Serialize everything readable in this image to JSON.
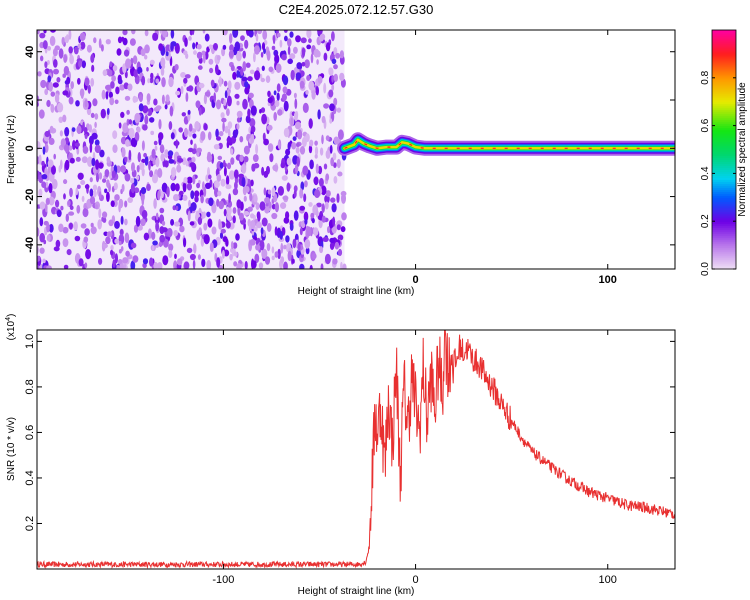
{
  "title": "C2E4.2025.072.12.57.G30",
  "chart_data": [
    {
      "type": "heatmap",
      "xlabel": "Height of straight line (km)",
      "ylabel": "Frequency (Hz)",
      "xlim": [
        -197,
        135
      ],
      "ylim": [
        -50,
        49
      ],
      "x_ticks": [
        -100,
        0,
        100
      ],
      "x_tick_labels": [
        "-100",
        "0",
        "100"
      ],
      "y_ticks": [
        -40,
        -20,
        0,
        20,
        40
      ],
      "y_tick_labels": [
        "-40",
        "-20",
        "0",
        "20",
        "40"
      ],
      "noise_region_x": [
        -197,
        -37
      ],
      "signal_track": {
        "x": [
          -37,
          -32,
          -30,
          -27,
          -24,
          -20,
          -15,
          -10,
          -7,
          -4,
          0,
          5,
          10,
          20,
          40,
          60,
          80,
          105,
          120,
          135
        ],
        "y": [
          0,
          1.5,
          3.5,
          2,
          1,
          0,
          0.5,
          0.5,
          2.5,
          2,
          0.5,
          0,
          0,
          0,
          0,
          0,
          0,
          0,
          0,
          0
        ]
      },
      "colorbar": {
        "label": "Normalized spectral amplitude",
        "range": [
          0,
          1
        ],
        "ticks": [
          0.0,
          0.2,
          0.4,
          0.6,
          0.8
        ],
        "tick_labels": [
          "0.0",
          "0.2",
          "0.4",
          "0.6",
          "0.8"
        ]
      },
      "grid": false
    },
    {
      "type": "line",
      "xlabel": "Height of straight line (km)",
      "ylabel": "SNR (10 * v/v)",
      "y_multiplier_base": "(x10",
      "y_multiplier_exp": "4",
      "y_multiplier_close": ")",
      "xlim": [
        -197,
        135
      ],
      "ylim": [
        0,
        1.05
      ],
      "x_ticks": [
        -100,
        0,
        100
      ],
      "x_tick_labels": [
        "-100",
        "0",
        "100"
      ],
      "y_ticks": [
        0.2,
        0.4,
        0.6,
        0.8,
        1.0
      ],
      "y_tick_labels": [
        "0.2",
        "0.4",
        "0.6",
        "0.8",
        "1.0"
      ],
      "series": [
        {
          "color": "#e83030",
          "x": [
            -197,
            -150,
            -100,
            -50,
            -30,
            -26,
            -24,
            -23,
            -22,
            -21,
            -20,
            -18,
            -16,
            -14,
            -12,
            -10,
            -8,
            -6,
            -4,
            -2,
            0,
            2,
            4,
            6,
            8,
            10,
            12,
            14,
            15,
            17,
            19,
            21,
            23,
            25,
            27,
            30,
            33,
            36,
            40,
            45,
            50,
            55,
            60,
            70,
            80,
            90,
            100,
            110,
            120,
            135
          ],
          "y": [
            0.02,
            0.02,
            0.02,
            0.02,
            0.02,
            0.03,
            0.1,
            0.35,
            0.5,
            0.7,
            0.6,
            0.72,
            0.45,
            0.75,
            0.55,
            0.9,
            0.4,
            0.8,
            0.62,
            0.85,
            0.72,
            0.6,
            0.88,
            0.65,
            0.85,
            0.7,
            0.92,
            0.75,
            1.05,
            0.88,
            0.95,
            0.9,
            0.98,
            0.95,
            0.97,
            0.92,
            0.9,
            0.85,
            0.8,
            0.72,
            0.65,
            0.58,
            0.52,
            0.45,
            0.39,
            0.34,
            0.31,
            0.28,
            0.27,
            0.24
          ]
        }
      ],
      "grid": false
    }
  ]
}
